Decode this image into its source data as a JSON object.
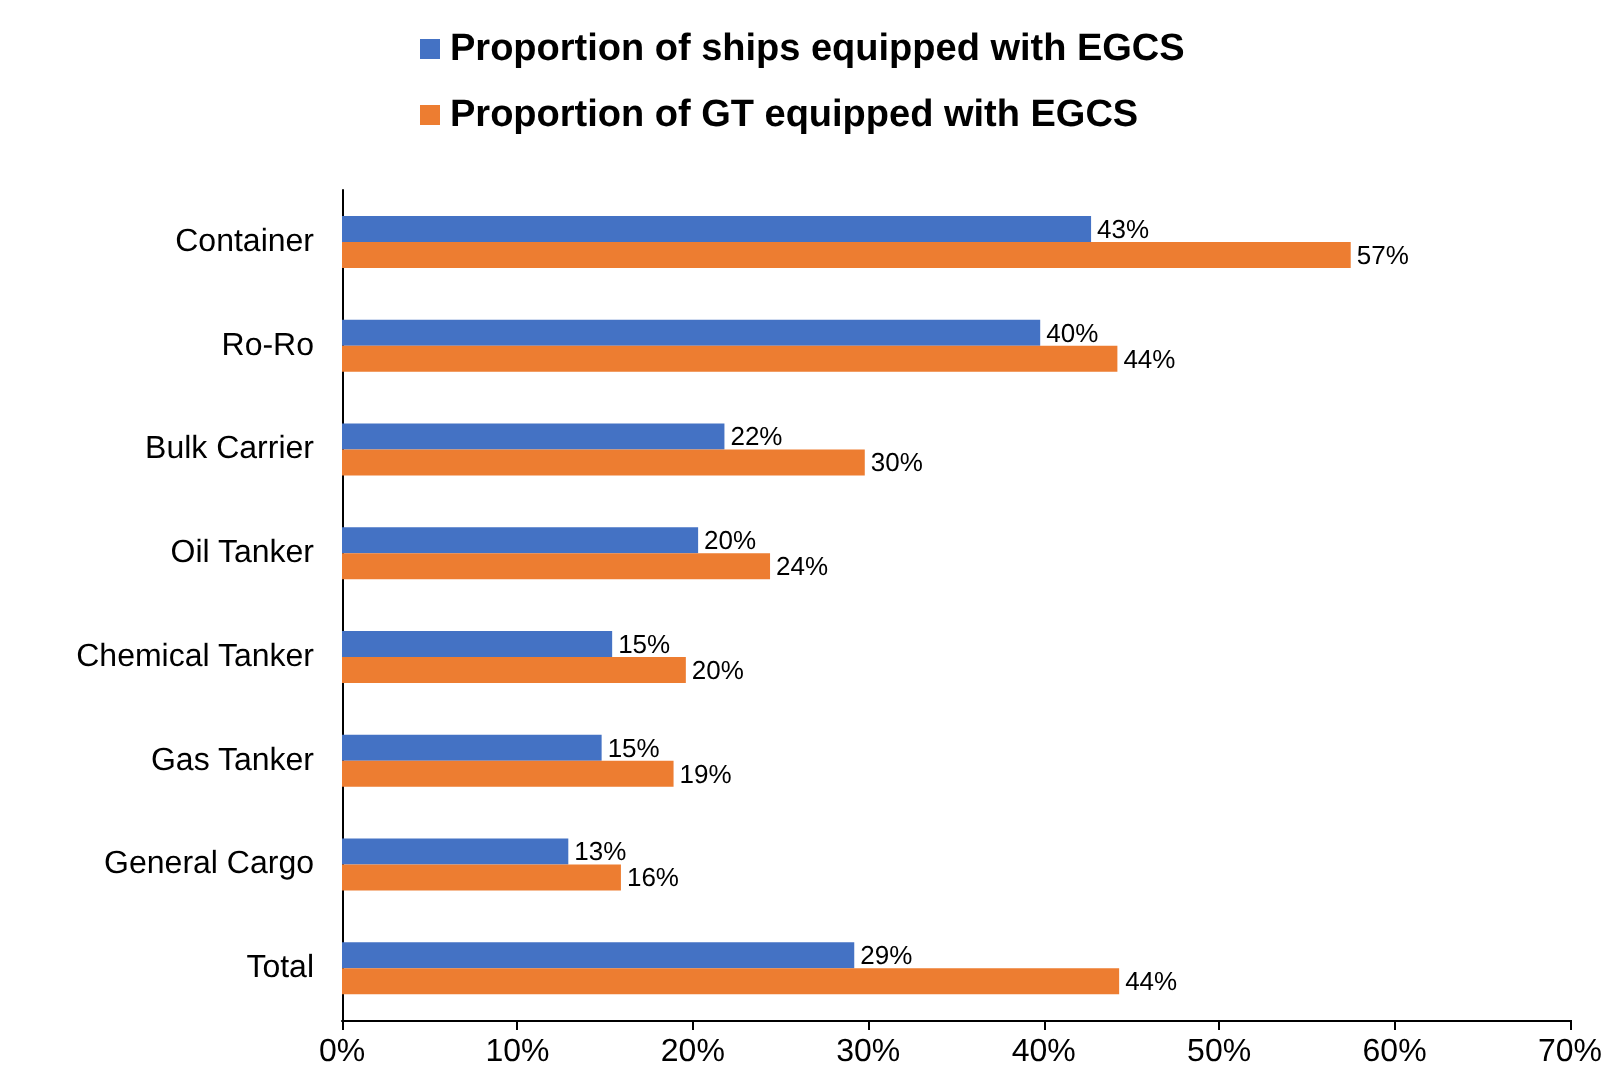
{
  "chart_data": {
    "type": "bar",
    "orientation": "horizontal",
    "categories": [
      "Container",
      "Ro-Ro",
      "Bulk Carrier",
      "Oil Tanker",
      "Chemical Tanker",
      "Gas Tanker",
      "General Cargo",
      "Total"
    ],
    "series": [
      {
        "name": "Proportion of ships equipped with EGCS",
        "color": "#4472c4",
        "values": [
          42.7,
          39.8,
          21.8,
          20.3,
          15.4,
          14.8,
          12.9,
          29.2
        ],
        "value_labels": [
          "43%",
          "40%",
          "22%",
          "20%",
          "15%",
          "15%",
          "13%",
          "29%"
        ]
      },
      {
        "name": "Proportion of GT equipped with EGCS",
        "color": "#ed7d31",
        "values": [
          57.5,
          44.2,
          29.8,
          24.4,
          19.6,
          18.9,
          15.9,
          44.3
        ],
        "value_labels": [
          "57%",
          "44%",
          "30%",
          "24%",
          "20%",
          "19%",
          "16%",
          "44%"
        ]
      }
    ],
    "xlim": [
      0,
      70
    ],
    "xticks": [
      {
        "value": 0,
        "label": "0%"
      },
      {
        "value": 10,
        "label": "10%"
      },
      {
        "value": 20,
        "label": "20%"
      },
      {
        "value": 30,
        "label": "30%"
      },
      {
        "value": 40,
        "label": "40%"
      },
      {
        "value": 50,
        "label": "50%"
      },
      {
        "value": 60,
        "label": "60%"
      },
      {
        "value": 70,
        "label": "70%"
      }
    ],
    "grid": false,
    "legend": "top"
  }
}
